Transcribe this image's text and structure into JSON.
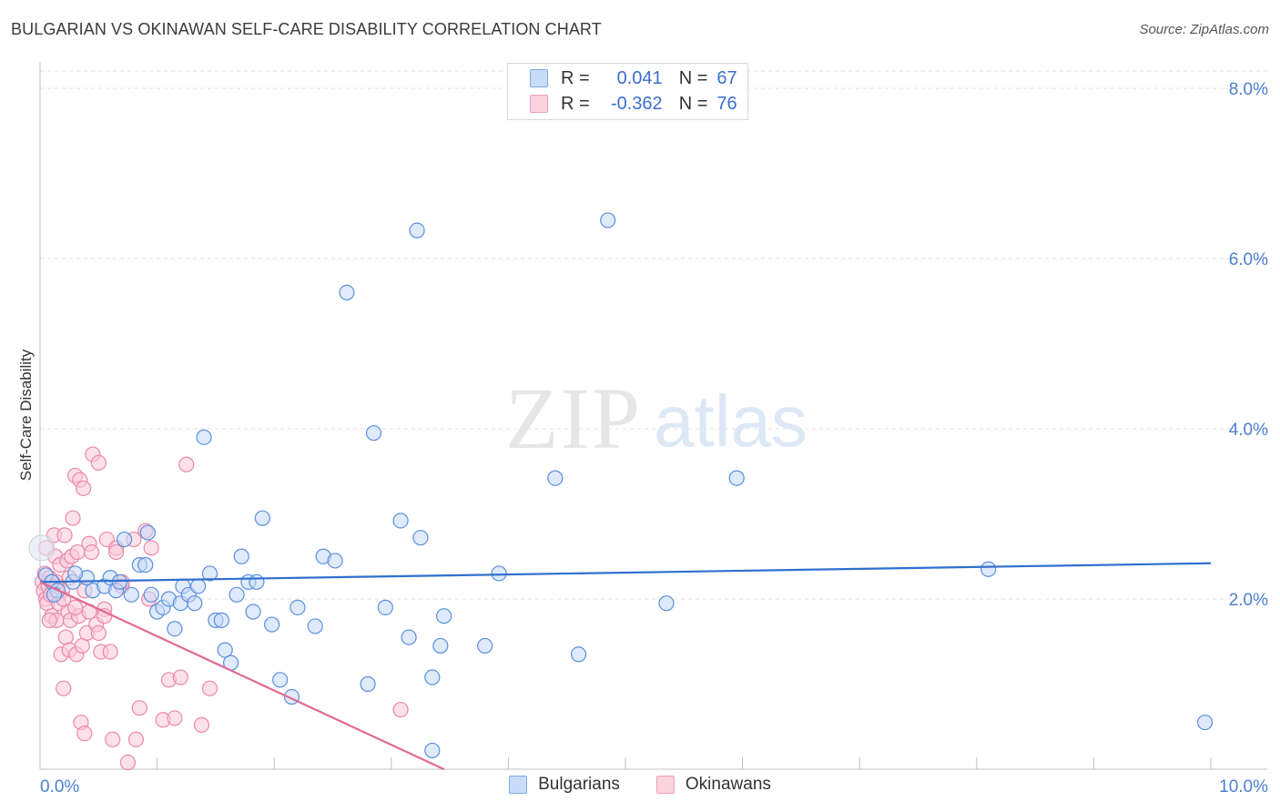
{
  "title": "BULGARIAN VS OKINAWAN SELF-CARE DISABILITY CORRELATION CHART",
  "source": "Source: ZipAtlas.com",
  "watermark": {
    "zip": "ZIP",
    "atlas": "atlas"
  },
  "legend": {
    "rows": [
      {
        "r_label": "R =",
        "r_value": "0.041",
        "n_label": "N =",
        "n_value": "67",
        "color": "#7ea8e8",
        "fill": "#c9dcf7"
      },
      {
        "r_label": "R =",
        "r_value": "-0.362",
        "n_label": "N =",
        "n_value": "76",
        "color": "#f0a0b8",
        "fill": "#fbd3df"
      }
    ]
  },
  "bottom_legend": [
    {
      "label": "Bulgarians",
      "color": "#7ea8e8",
      "fill": "#c9dcf7"
    },
    {
      "label": "Okinawans",
      "color": "#f0a0b8",
      "fill": "#fbd3df"
    }
  ],
  "chart_data": {
    "type": "scatter",
    "title": "BULGARIAN VS OKINAWAN SELF-CARE DISABILITY CORRELATION CHART",
    "xlabel": "",
    "ylabel": "Self-Care Disability",
    "xlim": [
      0,
      10
    ],
    "ylim": [
      0,
      8
    ],
    "x_tick_labels": [
      "0.0%",
      "10.0%"
    ],
    "y_ticks": [
      2,
      4,
      6,
      8
    ],
    "y_tick_labels": [
      "2.0%",
      "4.0%",
      "6.0%",
      "8.0%"
    ],
    "series": [
      {
        "name": "Bulgarians",
        "color": "#5b8fde",
        "fill": "#c5d9f6",
        "trend": {
          "x": [
            0,
            10
          ],
          "y": [
            2.2,
            2.42
          ],
          "color": "#2f6fce"
        },
        "points": [
          [
            0.05,
            2.28
          ],
          [
            0.1,
            2.2
          ],
          [
            0.15,
            2.1
          ],
          [
            0.28,
            2.2
          ],
          [
            0.4,
            2.25
          ],
          [
            0.45,
            2.1
          ],
          [
            0.55,
            2.15
          ],
          [
            0.6,
            2.25
          ],
          [
            0.65,
            2.1
          ],
          [
            0.72,
            2.7
          ],
          [
            0.78,
            2.05
          ],
          [
            0.85,
            2.4
          ],
          [
            0.9,
            2.4
          ],
          [
            0.92,
            2.78
          ],
          [
            1.0,
            1.85
          ],
          [
            1.05,
            1.9
          ],
          [
            1.1,
            2.0
          ],
          [
            1.15,
            1.65
          ],
          [
            1.2,
            1.95
          ],
          [
            1.22,
            2.15
          ],
          [
            1.27,
            2.05
          ],
          [
            1.32,
            1.95
          ],
          [
            1.4,
            3.9
          ],
          [
            1.45,
            2.3
          ],
          [
            1.5,
            1.75
          ],
          [
            1.55,
            1.75
          ],
          [
            1.58,
            1.4
          ],
          [
            1.63,
            1.25
          ],
          [
            1.68,
            2.05
          ],
          [
            1.72,
            2.5
          ],
          [
            1.78,
            2.2
          ],
          [
            1.82,
            1.85
          ],
          [
            1.85,
            2.2
          ],
          [
            1.9,
            2.95
          ],
          [
            1.98,
            1.7
          ],
          [
            2.05,
            1.05
          ],
          [
            2.15,
            0.85
          ],
          [
            2.2,
            1.9
          ],
          [
            2.35,
            1.68
          ],
          [
            2.42,
            2.5
          ],
          [
            2.52,
            2.45
          ],
          [
            2.62,
            5.6
          ],
          [
            2.8,
            1.0
          ],
          [
            2.85,
            3.95
          ],
          [
            2.95,
            1.9
          ],
          [
            3.08,
            2.92
          ],
          [
            3.15,
            1.55
          ],
          [
            3.22,
            6.33
          ],
          [
            3.25,
            2.72
          ],
          [
            3.35,
            0.22
          ],
          [
            3.35,
            1.08
          ],
          [
            3.42,
            1.45
          ],
          [
            3.45,
            1.8
          ],
          [
            3.8,
            1.45
          ],
          [
            3.92,
            2.3
          ],
          [
            4.4,
            3.42
          ],
          [
            4.6,
            1.35
          ],
          [
            4.85,
            6.45
          ],
          [
            5.35,
            1.95
          ],
          [
            5.95,
            3.42
          ],
          [
            8.1,
            2.35
          ],
          [
            9.95,
            0.55
          ],
          [
            0.3,
            2.3
          ],
          [
            0.12,
            2.05
          ],
          [
            0.68,
            2.2
          ],
          [
            0.95,
            2.05
          ],
          [
            1.35,
            2.15
          ]
        ]
      },
      {
        "name": "Okinawans",
        "color": "#eb89a8",
        "fill": "#f9c9d8",
        "trend": {
          "x": [
            0,
            3.45
          ],
          "y": [
            2.2,
            0.0
          ],
          "color": "#e06a95"
        },
        "points": [
          [
            0.02,
            2.2
          ],
          [
            0.03,
            2.1
          ],
          [
            0.04,
            2.3
          ],
          [
            0.05,
            2.0
          ],
          [
            0.06,
            1.95
          ],
          [
            0.07,
            2.15
          ],
          [
            0.08,
            2.25
          ],
          [
            0.09,
            2.05
          ],
          [
            0.1,
            1.8
          ],
          [
            0.11,
            2.2
          ],
          [
            0.12,
            2.75
          ],
          [
            0.13,
            2.5
          ],
          [
            0.14,
            1.75
          ],
          [
            0.15,
            2.15
          ],
          [
            0.16,
            1.95
          ],
          [
            0.17,
            2.4
          ],
          [
            0.18,
            1.35
          ],
          [
            0.19,
            2.1
          ],
          [
            0.2,
            0.95
          ],
          [
            0.21,
            2.75
          ],
          [
            0.22,
            1.55
          ],
          [
            0.23,
            2.45
          ],
          [
            0.24,
            1.85
          ],
          [
            0.25,
            1.4
          ],
          [
            0.26,
            1.75
          ],
          [
            0.27,
            2.5
          ],
          [
            0.28,
            2.95
          ],
          [
            0.3,
            3.45
          ],
          [
            0.31,
            1.35
          ],
          [
            0.32,
            2.55
          ],
          [
            0.33,
            1.8
          ],
          [
            0.34,
            3.4
          ],
          [
            0.35,
            0.55
          ],
          [
            0.36,
            1.45
          ],
          [
            0.37,
            3.3
          ],
          [
            0.38,
            0.42
          ],
          [
            0.4,
            1.6
          ],
          [
            0.42,
            2.65
          ],
          [
            0.44,
            2.55
          ],
          [
            0.45,
            3.7
          ],
          [
            0.48,
            1.7
          ],
          [
            0.5,
            3.6
          ],
          [
            0.52,
            1.38
          ],
          [
            0.55,
            1.88
          ],
          [
            0.57,
            2.7
          ],
          [
            0.6,
            1.38
          ],
          [
            0.62,
            0.35
          ],
          [
            0.65,
            2.6
          ],
          [
            0.7,
            2.15
          ],
          [
            0.75,
            0.08
          ],
          [
            0.8,
            2.7
          ],
          [
            0.82,
            0.35
          ],
          [
            0.85,
            0.72
          ],
          [
            0.9,
            2.8
          ],
          [
            0.93,
            2.0
          ],
          [
            0.95,
            2.6
          ],
          [
            1.05,
            0.58
          ],
          [
            1.1,
            1.05
          ],
          [
            1.15,
            0.6
          ],
          [
            1.2,
            1.08
          ],
          [
            1.25,
            3.58
          ],
          [
            1.38,
            0.52
          ],
          [
            1.45,
            0.95
          ],
          [
            3.08,
            0.7
          ],
          [
            0.05,
            2.6
          ],
          [
            0.08,
            1.75
          ],
          [
            0.14,
            2.2
          ],
          [
            0.2,
            2.0
          ],
          [
            0.25,
            2.25
          ],
          [
            0.3,
            1.9
          ],
          [
            0.38,
            2.1
          ],
          [
            0.42,
            1.85
          ],
          [
            0.5,
            1.6
          ],
          [
            0.55,
            1.8
          ],
          [
            0.65,
            2.55
          ],
          [
            0.7,
            2.2
          ]
        ]
      }
    ]
  }
}
